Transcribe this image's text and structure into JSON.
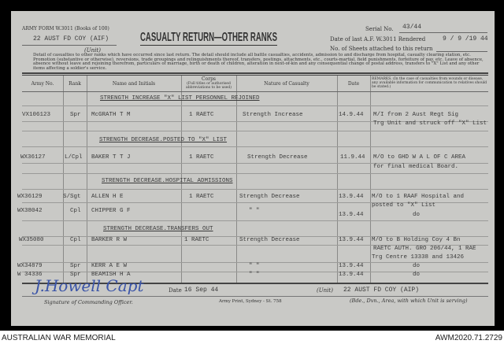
{
  "form": {
    "form_id": "ARMY FORM W.3011 (Books of 100)",
    "unit_typed": "22 AUST FD COY (AIF)",
    "unit_label": "(Unit)",
    "title": "CASUALTY RETURN—OTHER RANKS",
    "serial_label": "Serial No.",
    "serial_value": "43/44",
    "last_rendered_label": "Date of last A.F. W.3011 Rendered",
    "last_rendered_value": "9 / 9 /19 44",
    "sheets_label": "No. of Sheets attached to this return",
    "instructions": "Detail of casualties to other ranks which have occurred since last return. The detail should include all battle casualties, accidents, admission to and discharge from hospital, casualty clearing station, etc. Promotion (substantive or otherwise), reversions, trade groupings and relinquishments thereof, transfers, postings, attachments, etc., courts-martial, field punishments, forfeiture of pay, etc. Leave of absence, absence without leave and rejoining therefrom, particulars of marriage, birth or death of children, alteration in next-of-kin and any consequential change of postal address, transfers to \"X\" List and any other items affecting a soldier's service."
  },
  "table": {
    "headers": {
      "army_no": "Army No.",
      "rank": "Rank",
      "name": "Name and Initials",
      "corps": "Corps",
      "corps_note": "(Full titles or authorised abbreviations to be used)",
      "nature": "Nature of Casualty",
      "date": "Date",
      "remarks": "REMARKS. (In the case of casualties from wounds or disease, any available information for communication to relatives should be stated.)"
    },
    "sections": [
      "STRENGTH INCREASE \"X\" LIST PERSONNEL REJOINED",
      "STRENGTH DECREASE.POSTED TO \"X\" LIST",
      "STRENGTH DECREASE.HOSPITAL ADMISSIONS",
      "STRENGTH DECREASE.TRANSFERS OUT"
    ],
    "rows": [
      {
        "army_no": "VX106123",
        "rank": "Spr",
        "name": "McGRATH T M",
        "corps": "1 RAETC",
        "nature": "Strength Increase",
        "date": "14.9.44",
        "remarks": [
          "M/I from 2 Aust Regt Sig",
          "Trg Unit and struck off \"X\" List"
        ]
      },
      {
        "army_no": "WX36127",
        "rank": "L/Cpl",
        "name": "BAKER T T J",
        "corps": "1 RAETC",
        "nature": "Strength Decrease",
        "date": "11.9.44",
        "remarks": [
          "M/O to GHD W A L OF C AREA",
          "for final medical Board."
        ]
      },
      {
        "army_no": "WX36129",
        "rank": "S/Sgt",
        "name": "ALLEN H E",
        "corps": "1 RAETC",
        "nature": "Strength Decrease",
        "date": "13.9.44",
        "remarks": [
          "M/O to 1 RAAF Hospital and",
          "posted to \"X\" List"
        ]
      },
      {
        "army_no": "WX38042",
        "rank": "Cpl",
        "name": "CHIPPER G F",
        "corps": "",
        "nature": "\"       \"",
        "date": "13.9.44",
        "remarks": [
          "do"
        ]
      },
      {
        "army_no": "WX35080",
        "rank": "Cpl",
        "name": "BARKER R W",
        "corps": "1 RAETC",
        "nature": "Strength Decrease",
        "date": "13.9.44",
        "remarks": [
          "M/O to B Holding Coy 4 Bn",
          "RAETC AUTH. GRO 206/44, 1 RAE",
          "Trg Centre 13338 and 13426"
        ]
      },
      {
        "army_no": "WX34879",
        "rank": "Spr",
        "name": "KERR A E W",
        "corps": "",
        "nature": "\"       \"",
        "date": "13.9.44",
        "remarks": [
          "do"
        ]
      },
      {
        "army_no": "W 34336",
        "rank": "Spr",
        "name": "BEAMISH H A",
        "corps": "",
        "nature": "\"       \"",
        "date": "13.9.44",
        "remarks": [
          "do"
        ]
      }
    ]
  },
  "footer_form": {
    "signature_label": "Signature of Commanding Officer.",
    "signature": "J.Howell Capt",
    "date_label": "Date",
    "date_value": "16 Sep 44",
    "printer": "Army Print, Sydney - St. 758",
    "unit_label": "(Unit)",
    "unit_value": "22 AUST FD COY (AIP)",
    "unit_note": "(Bde., Dvn., Area, with which Unit is serving)"
  },
  "caption": {
    "left": "AUSTRALIAN WAR MEMORIAL",
    "right": "AWM2020.71.2729"
  }
}
